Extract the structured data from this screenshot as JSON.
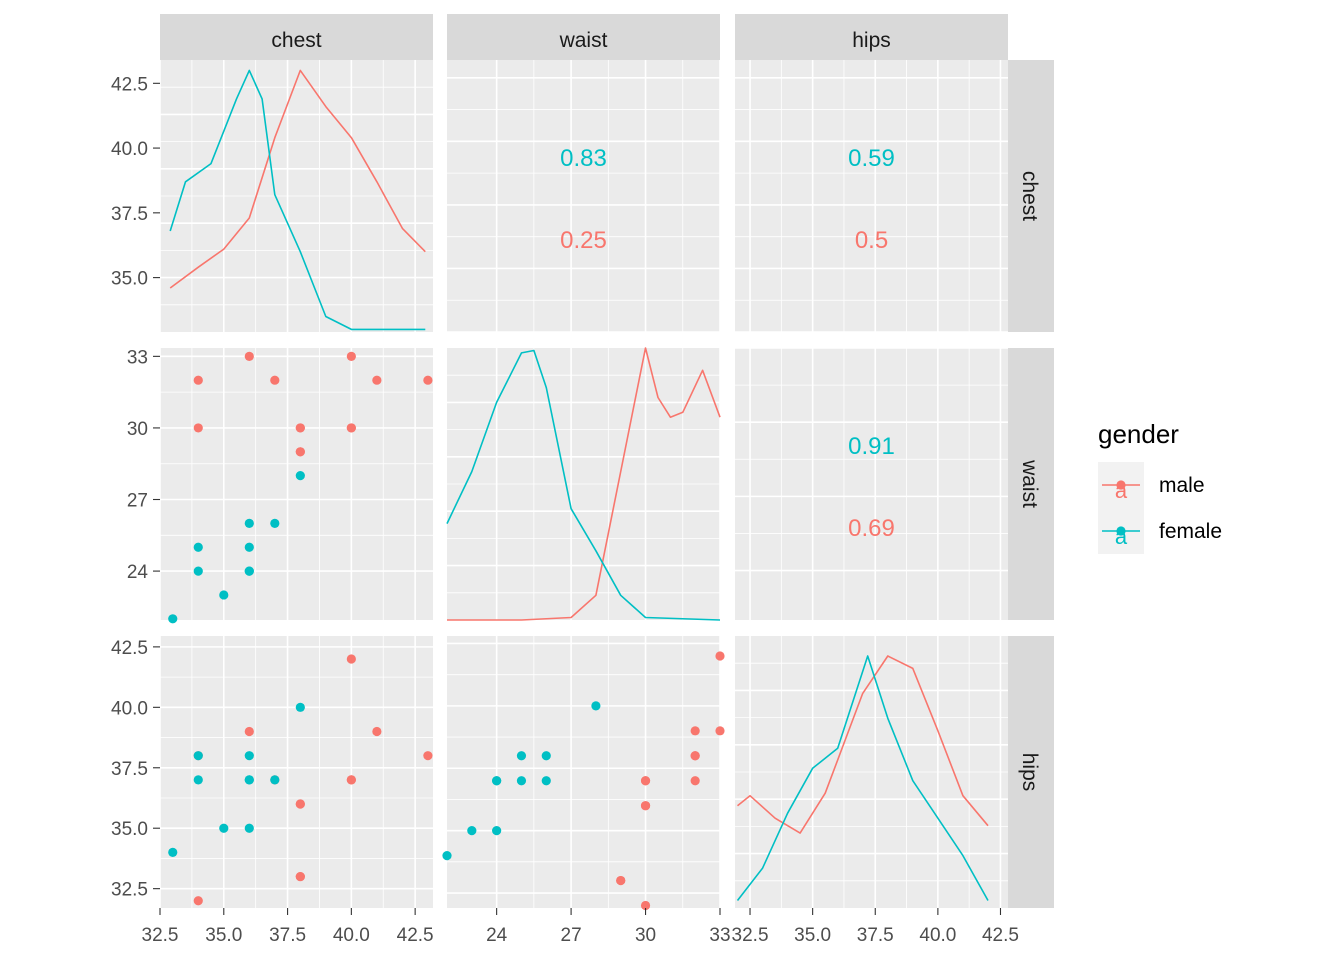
{
  "chart_data": {
    "type": "scatter",
    "variables": [
      "chest",
      "waist",
      "hips"
    ],
    "row_strips": [
      "chest",
      "waist",
      "hips"
    ],
    "col_strips": [
      "chest",
      "waist",
      "hips"
    ],
    "legend": {
      "title": "gender",
      "key_glyph": "a",
      "entries": [
        {
          "name": "male",
          "color": "#F8766D"
        },
        {
          "name": "female",
          "color": "#00BFC4"
        }
      ]
    },
    "axes": {
      "chest": {
        "lim": [
          32.5,
          43.2
        ],
        "ticks": [
          32.5,
          35.0,
          37.5,
          40.0,
          42.5
        ],
        "labels": [
          "32.5",
          "35.0",
          "37.5",
          "40.0",
          "42.5"
        ]
      },
      "waist": {
        "lim": [
          22.0,
          33.0
        ],
        "ticks": [
          24,
          27,
          30,
          33
        ],
        "labels": [
          "24",
          "27",
          "30",
          "33"
        ]
      },
      "hips": {
        "lim": [
          31.9,
          42.8
        ],
        "ticks": [
          32.5,
          35.0,
          37.5,
          40.0,
          42.5
        ],
        "labels": [
          "32.5",
          "35.0",
          "37.5",
          "40.0",
          "42.5"
        ]
      }
    },
    "y_axes_left": {
      "chest": {
        "lim": [
          32.9,
          43.4
        ],
        "ticks": [
          35.0,
          37.5,
          40.0,
          42.5
        ],
        "labels": [
          "35.0",
          "37.5",
          "40.0",
          "42.5"
        ]
      },
      "waist": {
        "lim": [
          21.95,
          33.35
        ],
        "ticks": [
          24,
          27,
          30,
          33
        ],
        "labels": [
          "24",
          "27",
          "30",
          "33"
        ]
      },
      "hips": {
        "lim": [
          31.7,
          42.95
        ],
        "ticks": [
          32.5,
          35.0,
          37.5,
          40.0,
          42.5
        ],
        "labels": [
          "32.5",
          "35.0",
          "37.5",
          "40.0",
          "42.5"
        ]
      }
    },
    "data": {
      "male": {
        "chest": [
          34,
          36,
          37,
          38,
          38,
          38,
          38,
          40,
          40,
          40,
          41,
          43,
          34
        ],
        "waist": [
          30,
          33,
          32,
          30,
          29,
          29,
          30,
          33,
          30,
          30,
          32,
          32,
          32
        ],
        "hips": [
          32,
          39,
          37,
          36,
          33,
          33,
          36,
          42,
          37,
          37,
          39,
          38,
          38
        ]
      },
      "female": {
        "chest": [
          33,
          34,
          34,
          35,
          36,
          36,
          36,
          37,
          38,
          36
        ],
        "waist": [
          22,
          24,
          25,
          23,
          24,
          25,
          26,
          26,
          28,
          24
        ],
        "hips": [
          34,
          37,
          38,
          35,
          35,
          37,
          38,
          37,
          40,
          37
        ]
      }
    },
    "correlations": {
      "chest_waist": {
        "female": "0.83",
        "male": "0.25"
      },
      "chest_hips": {
        "female": "0.59",
        "male": "0.5"
      },
      "waist_hips": {
        "female": "0.91",
        "male": "0.69"
      }
    },
    "densities": {
      "chest": {
        "male": [
          [
            32.9,
            34.6
          ],
          [
            34.0,
            35.4
          ],
          [
            35.0,
            36.1
          ],
          [
            36.0,
            37.3
          ],
          [
            37.0,
            40.4
          ],
          [
            38.0,
            43.0
          ],
          [
            39.0,
            41.6
          ],
          [
            40.0,
            40.4
          ],
          [
            41.0,
            38.7
          ],
          [
            42.0,
            36.9
          ],
          [
            42.9,
            36.0
          ]
        ],
        "female": [
          [
            32.9,
            36.8
          ],
          [
            33.5,
            38.7
          ],
          [
            34.5,
            39.4
          ],
          [
            35.5,
            41.9
          ],
          [
            36.0,
            43.0
          ],
          [
            36.5,
            41.9
          ],
          [
            37.0,
            38.2
          ],
          [
            38.0,
            36.0
          ],
          [
            39.0,
            33.5
          ],
          [
            40.0,
            33.0
          ],
          [
            42.9,
            33.0
          ]
        ]
      },
      "waist": {
        "male": [
          [
            22.0,
            22.0
          ],
          [
            25.0,
            22.0
          ],
          [
            27.0,
            22.1
          ],
          [
            28.0,
            23.0
          ],
          [
            29.0,
            28.0
          ],
          [
            30.0,
            33.0
          ],
          [
            30.5,
            31.0
          ],
          [
            31.0,
            30.2
          ],
          [
            31.5,
            30.4
          ],
          [
            32.3,
            32.1
          ],
          [
            33.0,
            30.2
          ]
        ],
        "female": [
          [
            22.0,
            25.9
          ],
          [
            23.0,
            28.0
          ],
          [
            24.0,
            30.8
          ],
          [
            25.0,
            32.8
          ],
          [
            25.5,
            32.9
          ],
          [
            26.0,
            31.4
          ],
          [
            27.0,
            26.5
          ],
          [
            28.0,
            24.8
          ],
          [
            29.0,
            23.0
          ],
          [
            30.0,
            22.1
          ],
          [
            33.0,
            22.0
          ]
        ]
      },
      "hips": {
        "male": [
          [
            32.0,
            36.0
          ],
          [
            32.5,
            36.4
          ],
          [
            33.5,
            35.5
          ],
          [
            34.5,
            34.9
          ],
          [
            35.5,
            36.5
          ],
          [
            37.0,
            40.5
          ],
          [
            38.0,
            42.0
          ],
          [
            39.0,
            41.5
          ],
          [
            40.0,
            39.0
          ],
          [
            41.0,
            36.4
          ],
          [
            42.0,
            35.2
          ]
        ],
        "female": [
          [
            32.0,
            32.2
          ],
          [
            33.0,
            33.5
          ],
          [
            34.0,
            35.7
          ],
          [
            35.0,
            37.5
          ],
          [
            36.0,
            38.3
          ],
          [
            37.2,
            42.0
          ],
          [
            38.0,
            39.5
          ],
          [
            39.0,
            37.0
          ],
          [
            40.0,
            35.5
          ],
          [
            41.0,
            34.0
          ],
          [
            42.0,
            32.2
          ]
        ]
      }
    }
  }
}
